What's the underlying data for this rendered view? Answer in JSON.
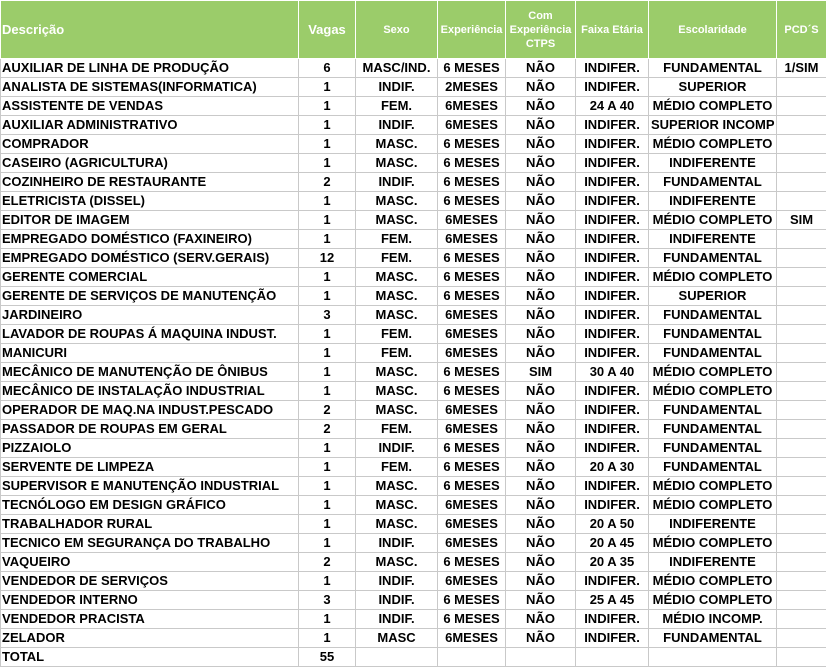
{
  "table": {
    "headers": [
      "Descrição",
      "Vagas",
      "Sexo",
      "Experiência",
      "Com Experiência CTPS",
      "Faixa Etária",
      "Escolaridade",
      "PCD´S"
    ],
    "rows": [
      [
        "AUXILIAR DE LINHA DE PRODUÇÃO",
        6,
        "MASC/IND.",
        "6 MESES",
        "NÃO",
        "INDIFER.",
        "FUNDAMENTAL",
        "1/SIM"
      ],
      [
        "ANALISTA DE SISTEMAS(INFORMATICA)",
        1,
        "INDIF.",
        "2MESES",
        "NÃO",
        "INDIFER.",
        "SUPERIOR"
      ],
      [
        "ASSISTENTE DE VENDAS",
        1,
        "FEM.",
        "6MESES",
        "NÃO",
        "24 A 40",
        "MÉDIO COMPLETO"
      ],
      [
        "AUXILIAR ADMINISTRATIVO",
        1,
        "INDIF.",
        "6MESES",
        "NÃO",
        "INDIFER.",
        "SUPERIOR INCOMP"
      ],
      [
        "COMPRADOR",
        1,
        "MASC.",
        "6 MESES",
        "NÃO",
        "INDIFER.",
        "MÉDIO COMPLETO"
      ],
      [
        "CASEIRO (AGRICULTURA)",
        1,
        "MASC.",
        "6 MESES",
        "NÃO",
        "INDIFER.",
        "INDIFERENTE"
      ],
      [
        "COZINHEIRO DE RESTAURANTE",
        2,
        "INDIF.",
        "6 MESES",
        "NÃO",
        "INDIFER.",
        "FUNDAMENTAL"
      ],
      [
        "ELETRICISTA (DISSEL)",
        1,
        "MASC.",
        "6 MESES",
        "NÃO",
        "INDIFER.",
        "INDIFERENTE"
      ],
      [
        "EDITOR DE IMAGEM",
        1,
        "MASC.",
        "6MESES",
        "NÃO",
        "INDIFER.",
        "MÉDIO COMPLETO",
        "SIM"
      ],
      [
        "EMPREGADO DOMÉSTICO (FAXINEIRO)",
        1,
        "FEM.",
        "6MESES",
        "NÃO",
        "INDIFER.",
        "INDIFERENTE"
      ],
      [
        "EMPREGADO DOMÉSTICO (SERV.GERAIS)",
        12,
        "FEM.",
        "6 MESES",
        "NÃO",
        "INDIFER.",
        "FUNDAMENTAL"
      ],
      [
        "GERENTE COMERCIAL",
        1,
        "MASC.",
        "6 MESES",
        "NÃO",
        "INDIFER.",
        "MÉDIO COMPLETO"
      ],
      [
        "GERENTE DE SERVIÇOS DE MANUTENÇÃO",
        1,
        "MASC.",
        "6 MESES",
        "NÃO",
        "INDIFER.",
        "SUPERIOR"
      ],
      [
        "JARDINEIRO",
        3,
        "MASC.",
        "6MESES",
        "NÃO",
        "INDIFER.",
        "FUNDAMENTAL"
      ],
      [
        "LAVADOR DE ROUPAS Á MAQUINA INDUST.",
        1,
        "FEM.",
        "6MESES",
        "NÃO",
        "INDIFER.",
        "FUNDAMENTAL"
      ],
      [
        "MANICURI",
        1,
        "FEM.",
        "6MESES",
        "NÃO",
        "INDIFER.",
        "FUNDAMENTAL"
      ],
      [
        "MECÂNICO DE MANUTENÇÃO DE ÔNIBUS",
        1,
        "MASC.",
        "6 MESES",
        "SIM",
        "30 A 40",
        "MÉDIO COMPLETO"
      ],
      [
        "MECÂNICO DE INSTALAÇÃO INDUSTRIAL",
        1,
        "MASC.",
        "6 MESES",
        "NÃO",
        "INDIFER.",
        "MÉDIO COMPLETO"
      ],
      [
        "OPERADOR DE MAQ.NA INDUST.PESCADO",
        2,
        "MASC.",
        "6MESES",
        "NÃO",
        "INDIFER.",
        "FUNDAMENTAL"
      ],
      [
        "PASSADOR DE ROUPAS EM GERAL",
        2,
        "FEM.",
        "6MESES",
        "NÃO",
        "INDIFER.",
        "FUNDAMENTAL"
      ],
      [
        "PIZZAIOLO",
        1,
        "INDIF.",
        "6 MESES",
        "NÃO",
        "INDIFER.",
        "FUNDAMENTAL"
      ],
      [
        "SERVENTE DE LIMPEZA",
        1,
        "FEM.",
        "6 MESES",
        "NÃO",
        "20 A 30",
        "FUNDAMENTAL"
      ],
      [
        "SUPERVISOR E MANUTENÇÃO INDUSTRIAL",
        1,
        "MASC.",
        "6 MESES",
        "NÃO",
        "INDIFER.",
        "MÉDIO COMPLETO"
      ],
      [
        "TECNÓLOGO EM DESIGN GRÁFICO",
        1,
        "MASC.",
        "6MESES",
        "NÃO",
        "INDIFER.",
        "MÉDIO COMPLETO"
      ],
      [
        "TRABALHADOR RURAL",
        1,
        "MASC.",
        "6MESES",
        "NÃO",
        "20 A 50",
        "INDIFERENTE"
      ],
      [
        "TECNICO EM SEGURANÇA DO TRABALHO",
        1,
        "INDIF.",
        "6MESES",
        "NÃO",
        "20 A 45",
        "MÉDIO COMPLETO"
      ],
      [
        "VAQUEIRO",
        2,
        "MASC.",
        "6 MESES",
        "NÃO",
        "20 A 35",
        "INDIFERENTE"
      ],
      [
        "VENDEDOR DE SERVIÇOS",
        1,
        "INDIF.",
        "6MESES",
        "NÃO",
        "INDIFER.",
        "MÉDIO COMPLETO"
      ],
      [
        "VENDEDOR INTERNO",
        3,
        "INDIF.",
        "6 MESES",
        "NÃO",
        "25 A 45",
        "MÉDIO COMPLETO"
      ],
      [
        "VENDEDOR PRACISTA",
        1,
        "INDIF.",
        "6 MESES",
        "NÃO",
        "INDIFER.",
        "MÉDIO INCOMP."
      ],
      [
        "ZELADOR",
        1,
        "MASC",
        "6MESES",
        "NÃO",
        "INDIFER.",
        "FUNDAMENTAL"
      ]
    ],
    "total": [
      "TOTAL",
      55
    ]
  }
}
